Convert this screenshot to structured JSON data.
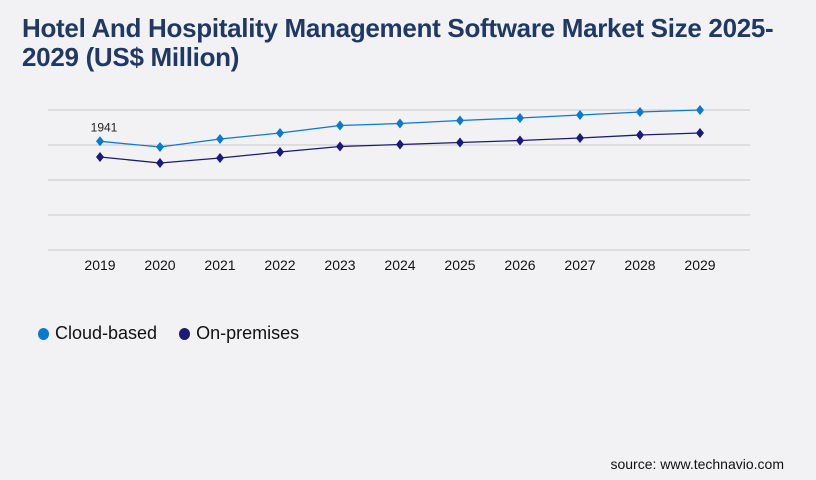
{
  "title": "Hotel And Hospitality Management Software Market Size 2025-2029 (US$ Million)",
  "source": "source: www.technavio.com",
  "chart_data": {
    "type": "line",
    "title": "Hotel And Hospitality Management Software Market Size 2025-2029 (US$ Million)",
    "xlabel": "",
    "ylabel": "",
    "categories": [
      "2019",
      "2020",
      "2021",
      "2022",
      "2023",
      "2024",
      "2025",
      "2026",
      "2027",
      "2028",
      "2029"
    ],
    "ylim": [
      0,
      2500
    ],
    "grid": true,
    "legend": "bottom-left",
    "series": [
      {
        "name": "Cloud-based",
        "color": "#0a7ad1",
        "values": [
          1941,
          1839,
          1982,
          2089,
          2223,
          2259,
          2313,
          2357,
          2411,
          2464,
          2500
        ]
      },
      {
        "name": "On-premises",
        "color": "#1a1a78",
        "values": [
          1661,
          1554,
          1643,
          1750,
          1848,
          1884,
          1920,
          1955,
          2000,
          2054,
          2089
        ]
      }
    ],
    "annotations": [
      {
        "series": "Cloud-based",
        "category": "2019",
        "text": "1941"
      }
    ]
  }
}
